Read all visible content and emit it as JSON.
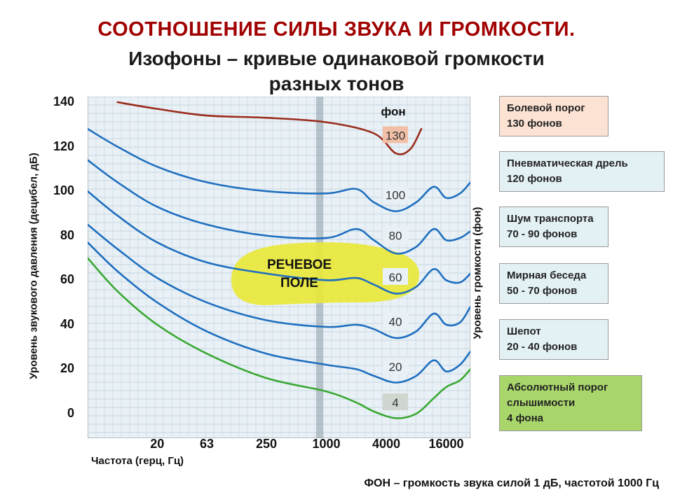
{
  "title": "СООТНОШЕНИЕ СИЛЫ ЗВУКА И ГРОМКОСТИ.",
  "subtitle_line1": "Изофоны – кривые одинаковой громкости",
  "subtitle_line2": "разных тонов",
  "footer": "ФОН – громкость звука силой 1 дБ, частотой 1000 Гц",
  "speech_area_line1": "РЕЧЕВОЕ",
  "speech_area_line2": "ПОЛЕ",
  "legend_boxes": [
    {
      "line1": "Болевой порог",
      "line2": "130 фонов",
      "line3": "",
      "bg": "#fbe2d3"
    },
    {
      "line1": "Пневматическая дрель",
      "line2": "120 фонов",
      "line3": "",
      "bg": "#e3f1f5"
    },
    {
      "line1": "Шум транспорта",
      "line2": "70 - 90 фонов",
      "line3": "",
      "bg": "#e3f1f5"
    },
    {
      "line1": "Мирная беседа",
      "line2": "50 - 70 фонов",
      "line3": "",
      "bg": "#e3f1f5"
    },
    {
      "line1": "Шепот",
      "line2": "20 - 40 фонов",
      "line3": "",
      "bg": "#e3f1f5"
    },
    {
      "line1": "Абсолютный  порог",
      "line2": "слышимости",
      "line3": "4 фона",
      "bg": "#a9d66b"
    }
  ],
  "chart_data": {
    "type": "line",
    "title": "",
    "xlabel": "Частота  (герц, Гц)",
    "ylabel": "Уровень звукового давления   (децибел,  дБ)",
    "ylabel_right": "Уровень громкости  (фон)",
    "yticks": [
      "140",
      "120",
      "100",
      "80",
      "60",
      "40",
      "20",
      "0"
    ],
    "ylim": [
      -10,
      140
    ],
    "xticks": [
      "20",
      "63",
      "250",
      "1000",
      "4000",
      "16000"
    ],
    "x_scale": "log",
    "series_units_label": "фон",
    "grid": true,
    "colors": {
      "pain": "#9a2a1a",
      "phon": "#1f6fbf",
      "threshold": "#3aa832",
      "speech": "#e8e83a"
    },
    "series": [
      {
        "name": "130",
        "x": [
          8,
          20,
          63,
          250,
          1000,
          3000,
          5000,
          7000,
          9000
        ],
        "y": [
          140,
          137,
          134,
          133,
          131,
          126,
          117,
          119,
          128
        ]
      },
      {
        "name": "100",
        "x": [
          4,
          8,
          20,
          63,
          250,
          1000,
          2000,
          3000,
          5000,
          8000,
          12000,
          16000,
          22000,
          28000
        ],
        "y": [
          128,
          120,
          111,
          104,
          100,
          99,
          101,
          95,
          91,
          95,
          102,
          97,
          99,
          104
        ]
      },
      {
        "name": "80",
        "x": [
          4,
          8,
          20,
          63,
          250,
          1000,
          2000,
          3000,
          5000,
          8000,
          12000,
          16000,
          22000,
          28000
        ],
        "y": [
          114,
          104,
          93,
          85,
          80,
          79,
          83,
          78,
          72,
          75,
          83,
          78,
          79,
          82
        ]
      },
      {
        "name": "60",
        "x": [
          4,
          8,
          20,
          63,
          250,
          1000,
          2000,
          3000,
          5000,
          8000,
          12000,
          16000,
          22000,
          28000
        ],
        "y": [
          100,
          89,
          77,
          68,
          63,
          60,
          61,
          58,
          54,
          57,
          65,
          60,
          59,
          63
        ]
      },
      {
        "name": "40",
        "x": [
          4,
          8,
          20,
          63,
          250,
          1000,
          2000,
          3000,
          5000,
          8000,
          12000,
          16000,
          22000,
          28000
        ],
        "y": [
          85,
          74,
          61,
          50,
          42,
          39,
          40,
          38,
          34,
          37,
          45,
          40,
          41,
          48
        ]
      },
      {
        "name": "20",
        "x": [
          4,
          8,
          20,
          63,
          250,
          1000,
          2000,
          3000,
          5000,
          8000,
          12000,
          16000,
          22000,
          28000
        ],
        "y": [
          77,
          64,
          50,
          37,
          27,
          22,
          20,
          17,
          14,
          17,
          24,
          19,
          22,
          28
        ]
      },
      {
        "name": "4",
        "x": [
          4,
          8,
          20,
          63,
          250,
          1000,
          2000,
          3000,
          5000,
          8000,
          12000,
          16000,
          22000,
          28000
        ],
        "y": [
          70,
          55,
          40,
          27,
          16,
          10,
          5,
          1,
          -2,
          0,
          7,
          12,
          15,
          20
        ]
      }
    ]
  }
}
